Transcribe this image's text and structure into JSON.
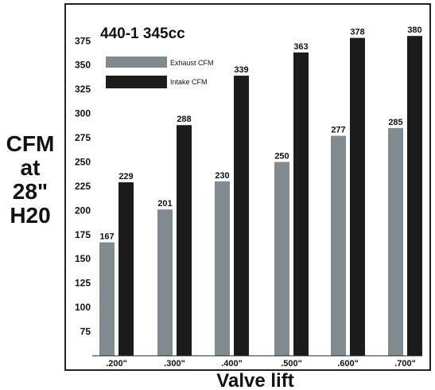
{
  "chart_data": {
    "type": "bar",
    "title": "440-1  345cc",
    "xlabel": "Valve lift",
    "ylabel_lines": [
      "CFM",
      "at",
      "28\"",
      "H20"
    ],
    "categories": [
      ".200\"",
      ".300\"",
      ".400\"",
      ".500\"",
      ".600\"",
      ".700\""
    ],
    "y_ticks": [
      75,
      100,
      125,
      150,
      175,
      200,
      225,
      250,
      275,
      300,
      325,
      350,
      375
    ],
    "ylim": [
      50,
      390
    ],
    "grid": false,
    "legend_position": "top-left",
    "series": [
      {
        "name": "Exhaust CFM",
        "color": "#808a8f",
        "values": [
          167,
          201,
          230,
          250,
          277,
          285
        ]
      },
      {
        "name": "Intake CFM",
        "color": "#1c1c1c",
        "values": [
          229,
          288,
          339,
          363,
          378,
          380
        ]
      }
    ]
  }
}
